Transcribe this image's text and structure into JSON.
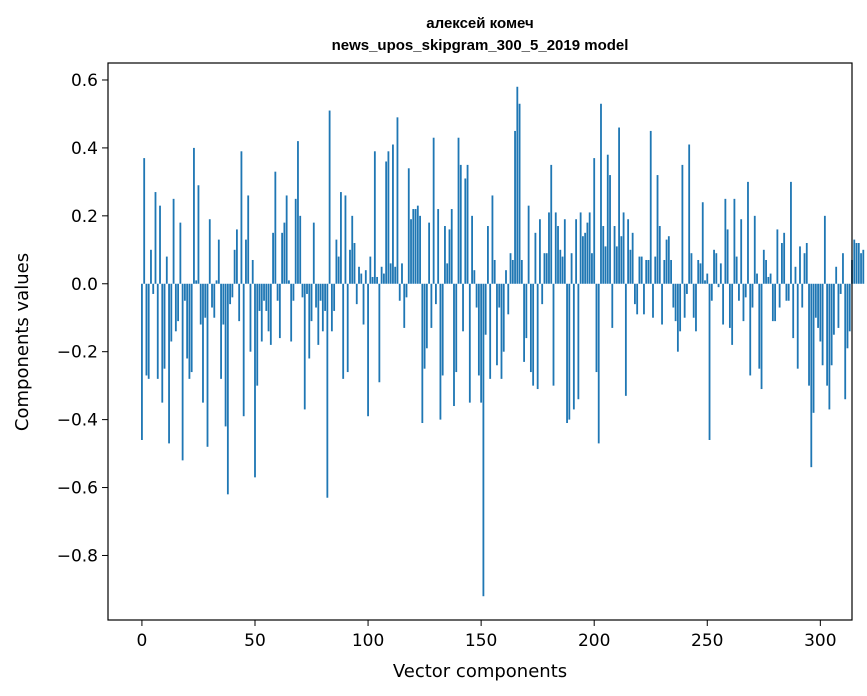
{
  "chart_data": {
    "type": "bar",
    "title_line1": "алексей комеч",
    "title_line2": "news_upos_skipgram_300_5_2019 model",
    "xlabel": "Vector components",
    "ylabel": "Components values",
    "xlim": [
      -15,
      314
    ],
    "ylim": [
      -0.99,
      0.65
    ],
    "xticks": [
      0,
      50,
      100,
      150,
      200,
      250,
      300
    ],
    "xtick_labels": [
      "0",
      "50",
      "100",
      "150",
      "200",
      "250",
      "300"
    ],
    "yticks": [
      0.6,
      0.4,
      0.2,
      0.0,
      -0.2,
      -0.4,
      -0.6,
      -0.8
    ],
    "ytick_labels": [
      "0.6",
      "0.4",
      "0.2",
      "0.0",
      "−0.2",
      "−0.4",
      "−0.6",
      "−0.8"
    ],
    "bar_color": "#1f77b4",
    "values": [
      -0.46,
      0.37,
      -0.27,
      -0.28,
      0.1,
      -0.03,
      0.27,
      -0.28,
      0.23,
      -0.35,
      -0.25,
      0.08,
      -0.47,
      -0.17,
      0.25,
      -0.14,
      -0.11,
      0.18,
      -0.52,
      -0.05,
      -0.22,
      -0.28,
      -0.26,
      0.4,
      0.01,
      0.29,
      -0.12,
      -0.35,
      -0.1,
      -0.48,
      0.19,
      -0.07,
      -0.1,
      0.01,
      0.13,
      -0.28,
      -0.12,
      -0.42,
      -0.62,
      -0.06,
      -0.04,
      0.1,
      0.16,
      -0.11,
      0.39,
      -0.39,
      0.13,
      0.26,
      -0.2,
      0.07,
      -0.57,
      -0.3,
      -0.08,
      -0.17,
      -0.05,
      -0.08,
      -0.14,
      -0.18,
      0.15,
      0.33,
      -0.05,
      -0.16,
      0.15,
      0.18,
      0.26,
      0.01,
      -0.17,
      -0.05,
      0.25,
      0.42,
      0.2,
      -0.04,
      -0.37,
      -0.03,
      -0.22,
      -0.11,
      0.18,
      -0.07,
      -0.18,
      -0.05,
      -0.14,
      -0.08,
      -0.63,
      0.51,
      -0.14,
      -0.08,
      0.13,
      0.08,
      0.27,
      -0.28,
      0.26,
      -0.26,
      0.1,
      0.2,
      0.12,
      -0.06,
      0.05,
      0.03,
      -0.12,
      0.04,
      -0.39,
      0.08,
      0.02,
      0.39,
      0.02,
      -0.29,
      0.05,
      0.03,
      0.36,
      0.39,
      0.06,
      0.41,
      0.05,
      0.49,
      -0.05,
      0.06,
      -0.13,
      -0.04,
      0.34,
      0.19,
      0.22,
      0.22,
      0.23,
      0.2,
      -0.41,
      -0.25,
      -0.19,
      0.18,
      -0.13,
      0.43,
      -0.06,
      0.22,
      -0.4,
      -0.27,
      0.17,
      0.06,
      0.16,
      0.22,
      -0.36,
      -0.26,
      0.43,
      0.35,
      -0.14,
      0.31,
      0.35,
      -0.35,
      0.2,
      0.04,
      -0.07,
      -0.27,
      -0.35,
      -0.92,
      -0.15,
      0.17,
      -0.28,
      0.26,
      0.07,
      -0.24,
      -0.07,
      -0.28,
      -0.2,
      0.04,
      -0.09,
      0.09,
      0.07,
      0.45,
      0.58,
      0.53,
      0.07,
      -0.23,
      -0.16,
      0.23,
      -0.26,
      -0.3,
      0.15,
      -0.31,
      0.19,
      -0.06,
      0.09,
      0.09,
      0.21,
      0.35,
      -0.3,
      0.21,
      0.17,
      0.1,
      0.08,
      0.19,
      -0.41,
      -0.4,
      0.09,
      -0.37,
      0.19,
      -0.34,
      0.21,
      0.14,
      0.15,
      0.18,
      0.21,
      0.09,
      0.37,
      -0.26,
      -0.47,
      0.53,
      0.17,
      0.11,
      0.38,
      0.32,
      -0.13,
      0.17,
      0.11,
      0.46,
      0.14,
      0.21,
      -0.33,
      0.19,
      0.1,
      0.15,
      -0.06,
      -0.09,
      0.08,
      0.08,
      -0.09,
      0.07,
      0.07,
      0.45,
      -0.1,
      0.08,
      0.32,
      0.17,
      -0.12,
      0.07,
      0.13,
      0.14,
      0.07,
      -0.07,
      -0.11,
      -0.2,
      -0.14,
      0.35,
      -0.1,
      -0.03,
      0.41,
      0.09,
      -0.1,
      -0.14,
      0.07,
      0.06,
      0.24,
      0.01,
      0.03,
      -0.46,
      -0.05,
      0.1,
      0.09,
      -0.01,
      0.06,
      -0.12,
      0.25,
      0.16,
      -0.13,
      -0.18,
      0.25,
      0.08,
      -0.05,
      0.19,
      -0.11,
      -0.04,
      0.3,
      -0.27,
      -0.07,
      0.2,
      0.03,
      -0.25,
      -0.31,
      0.1,
      0.07,
      0.02,
      0.03,
      -0.11,
      -0.11,
      0.16,
      -0.07,
      0.12,
      0.15,
      -0.05,
      -0.05,
      0.3,
      -0.16,
      0.05,
      -0.25,
      0.11,
      -0.07,
      0.09,
      0.12,
      -0.3,
      -0.54,
      -0.38,
      -0.1,
      -0.13,
      -0.17,
      -0.24,
      0.2,
      -0.3,
      -0.37,
      -0.24,
      -0.15,
      0.05,
      -0.13,
      -0.03,
      0.09,
      -0.34,
      -0.19,
      -0.14,
      0.07,
      0.13,
      0.12,
      0.12,
      0.09,
      0.1
    ]
  }
}
